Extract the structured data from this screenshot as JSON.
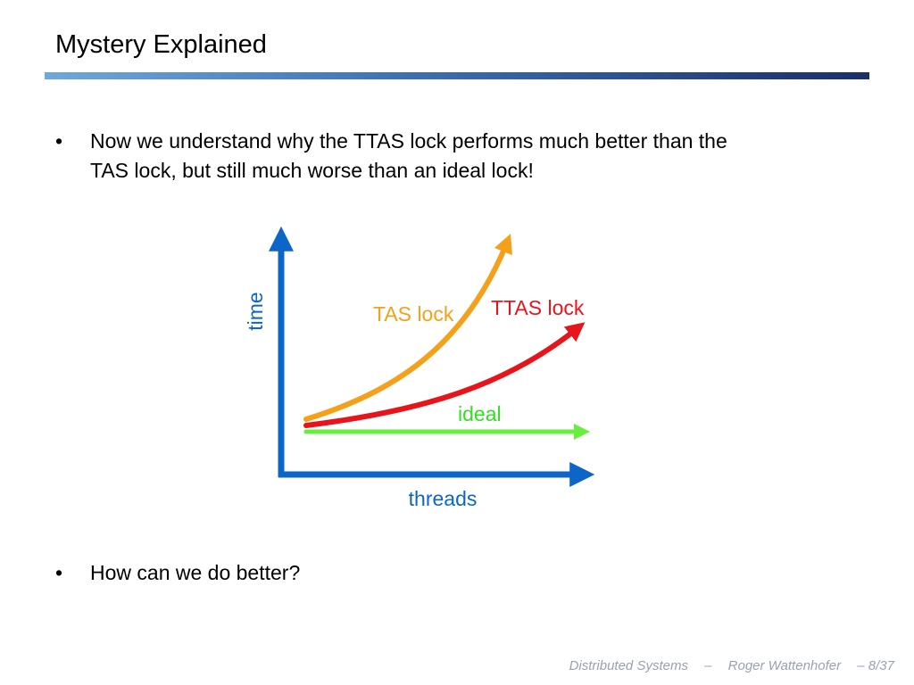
{
  "slide": {
    "title": "Mystery Explained",
    "bullets": [
      {
        "lines": [
          "Now we understand why the TTAS lock performs much better than the",
          "TAS lock, but still much worse than an ideal lock!"
        ]
      },
      {
        "lines": [
          "How can we do better?"
        ]
      }
    ],
    "bullet_symbol": "•"
  },
  "diagram": {
    "axes": {
      "x_label": "threads",
      "y_label": "time",
      "color": "#0b66c8"
    },
    "curves": [
      {
        "label": "TAS lock",
        "color": "#f5a01a"
      },
      {
        "label": "TTAS lock",
        "color": "#e8141b"
      },
      {
        "label": "ideal",
        "color": "#66ef3c"
      }
    ]
  },
  "footer": {
    "course": "Distributed Systems",
    "separator": "–",
    "author": "Roger Wattenhofer",
    "page": "– 8/37"
  }
}
